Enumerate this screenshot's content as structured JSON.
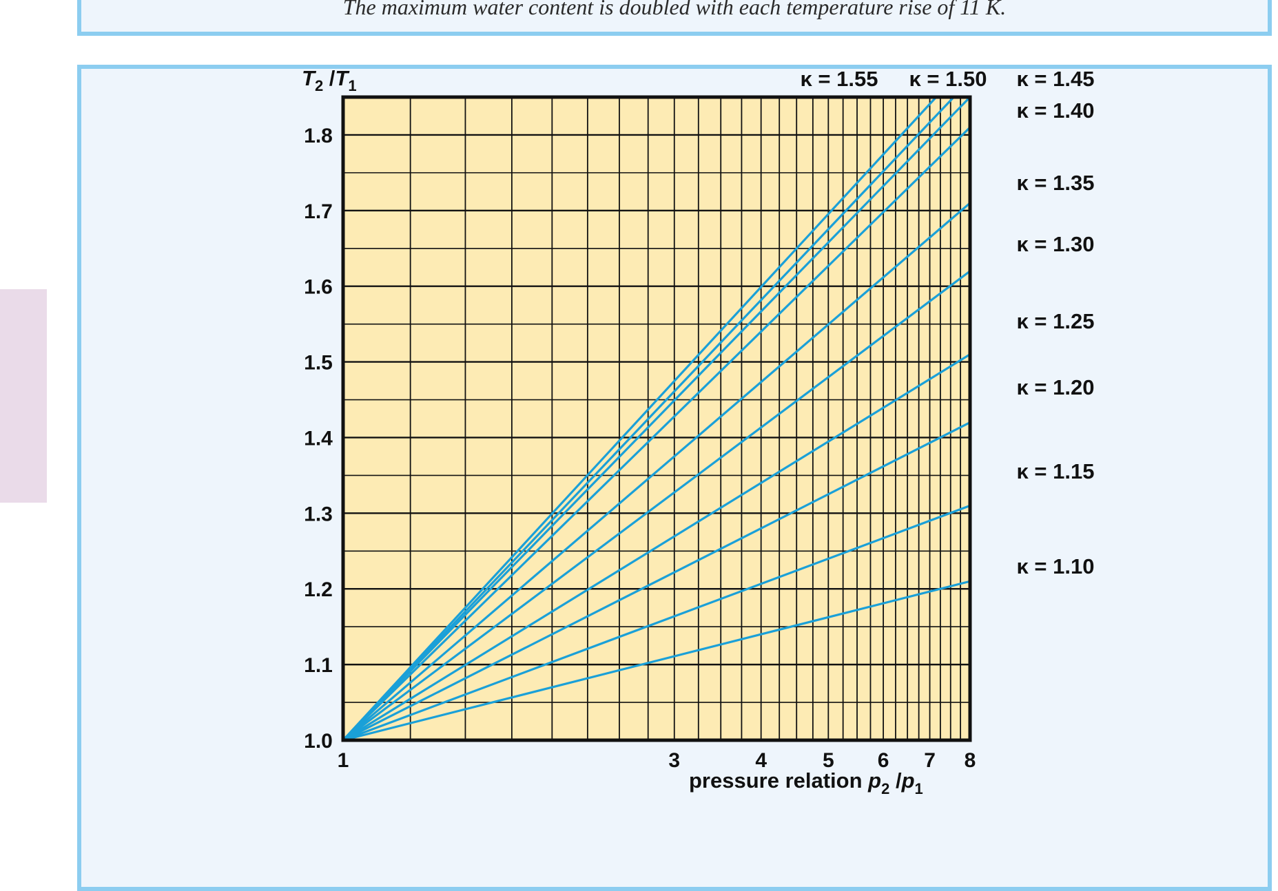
{
  "caption": "The maximum water content is doubled with each temperature rise of 11 K.",
  "chart_data": {
    "type": "line",
    "title": "",
    "xlabel": {
      "prefix": "pressure relation ",
      "var1": "p",
      "sub1": "2",
      "sep": " /",
      "var2": "p",
      "sub2": "1"
    },
    "ylabel": {
      "var1": "T",
      "sub1": "2",
      "sep": " /",
      "var2": "T",
      "sub2": "1"
    },
    "x_scale": "log",
    "xlim": [
      1,
      8
    ],
    "ylim": [
      1.0,
      1.85
    ],
    "x_ticks": [
      1,
      3,
      4,
      5,
      6,
      7,
      8
    ],
    "y_ticks": [
      1.0,
      1.1,
      1.2,
      1.3,
      1.4,
      1.5,
      1.6,
      1.7,
      1.8
    ],
    "grid": true,
    "line_color": "#1aa0d8",
    "plot_bg": "#fdebb4",
    "series": [
      {
        "name": "κ = 1.55",
        "kappa": 1.55,
        "x": [
          1,
          7.15
        ],
        "y": [
          1.0,
          1.85
        ]
      },
      {
        "name": "κ = 1.50",
        "kappa": 1.5,
        "x": [
          1,
          7.58
        ],
        "y": [
          1.0,
          1.85
        ]
      },
      {
        "name": "κ = 1.45",
        "kappa": 1.45,
        "x": [
          1,
          8
        ],
        "y": [
          1.0,
          1.85
        ]
      },
      {
        "name": "κ = 1.40",
        "kappa": 1.4,
        "x": [
          1,
          8
        ],
        "y": [
          1.0,
          1.81
        ]
      },
      {
        "name": "κ = 1.35",
        "kappa": 1.35,
        "x": [
          1,
          8
        ],
        "y": [
          1.0,
          1.71
        ]
      },
      {
        "name": "κ = 1.30",
        "kappa": 1.3,
        "x": [
          1,
          8
        ],
        "y": [
          1.0,
          1.62
        ]
      },
      {
        "name": "κ = 1.25",
        "kappa": 1.25,
        "x": [
          1,
          8
        ],
        "y": [
          1.0,
          1.51
        ]
      },
      {
        "name": "κ = 1.20",
        "kappa": 1.2,
        "x": [
          1,
          8
        ],
        "y": [
          1.0,
          1.42
        ]
      },
      {
        "name": "κ = 1.15",
        "kappa": 1.15,
        "x": [
          1,
          8
        ],
        "y": [
          1.0,
          1.31
        ]
      },
      {
        "name": "κ = 1.10",
        "kappa": 1.1,
        "x": [
          1,
          8
        ],
        "y": [
          1.0,
          1.21
        ]
      }
    ]
  }
}
